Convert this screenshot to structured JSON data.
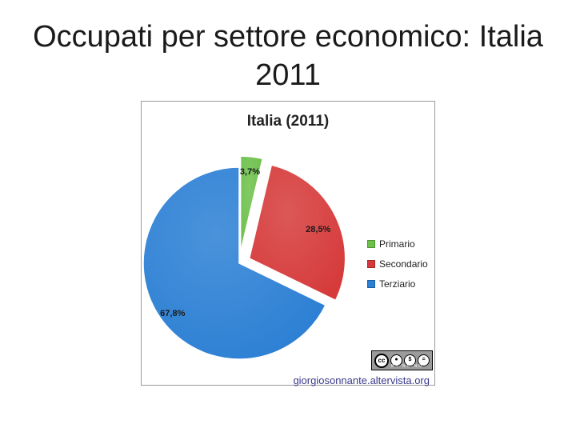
{
  "slide": {
    "title_line1": "Occupati per settore economico: Italia",
    "title_line2": "2011"
  },
  "chart_data": {
    "type": "pie",
    "title": "Italia (2011)",
    "categories": [
      "Primario",
      "Secondario",
      "Terziario"
    ],
    "values": [
      3.7,
      28.5,
      67.8
    ],
    "value_labels": [
      "3,7%",
      "28,5%",
      "67,8%"
    ],
    "colors": [
      "#6cc04a",
      "#d63a3a",
      "#2b7fd4"
    ],
    "exploded": true,
    "legend_position": "right"
  },
  "license": {
    "badge_text": "cc",
    "badge_sub": "BY NC ND",
    "website": "giorgiosonnante.altervista.org"
  }
}
